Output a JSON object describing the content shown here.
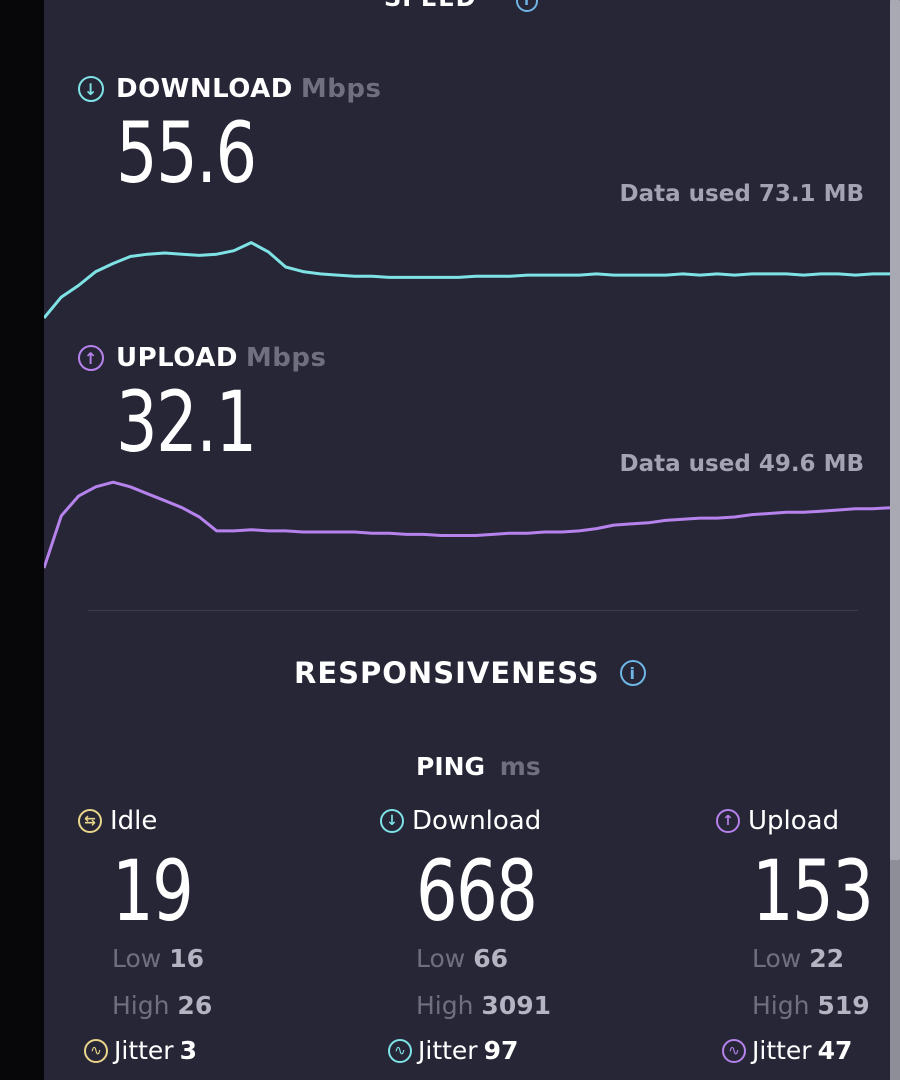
{
  "speed": {
    "section_title": "SPEED"
  },
  "download": {
    "label": "DOWNLOAD",
    "unit": "Mbps",
    "value": "55.6",
    "data_used": "Data used 73.1 MB",
    "color": "#7fe3e6",
    "trace": [
      0.0,
      0.18,
      0.28,
      0.4,
      0.47,
      0.53,
      0.55,
      0.56,
      0.55,
      0.54,
      0.55,
      0.58,
      0.65,
      0.57,
      0.44,
      0.4,
      0.38,
      0.37,
      0.36,
      0.36,
      0.35,
      0.35,
      0.35,
      0.35,
      0.35,
      0.36,
      0.36,
      0.36,
      0.37,
      0.37,
      0.37,
      0.37,
      0.38,
      0.37,
      0.37,
      0.37,
      0.37,
      0.38,
      0.37,
      0.38,
      0.37,
      0.38,
      0.38,
      0.38,
      0.37,
      0.38,
      0.38,
      0.37,
      0.38,
      0.38
    ]
  },
  "upload": {
    "label": "UPLOAD",
    "unit": "Mbps",
    "value": "32.1",
    "data_used": "Data used 49.6 MB",
    "color": "#b682ec",
    "trace": [
      0.0,
      0.45,
      0.62,
      0.7,
      0.74,
      0.7,
      0.64,
      0.58,
      0.52,
      0.44,
      0.32,
      0.32,
      0.33,
      0.32,
      0.32,
      0.31,
      0.31,
      0.31,
      0.31,
      0.3,
      0.3,
      0.29,
      0.29,
      0.28,
      0.28,
      0.28,
      0.29,
      0.3,
      0.3,
      0.31,
      0.31,
      0.32,
      0.34,
      0.37,
      0.38,
      0.39,
      0.41,
      0.42,
      0.43,
      0.43,
      0.44,
      0.46,
      0.47,
      0.48,
      0.48,
      0.49,
      0.5,
      0.51,
      0.51,
      0.52
    ]
  },
  "responsiveness": {
    "title": "RESPONSIVENESS"
  },
  "ping": {
    "label": "PING",
    "unit": "ms",
    "idle": {
      "label": "Idle",
      "value": "19",
      "low_label": "Low",
      "low": "16",
      "high_label": "High",
      "high": "26",
      "jitter_label": "Jitter",
      "jitter": "3",
      "color": "#e9d68a"
    },
    "download": {
      "label": "Download",
      "value": "668",
      "low_label": "Low",
      "low": "66",
      "high_label": "High",
      "high": "3091",
      "jitter_label": "Jitter",
      "jitter": "97",
      "color": "#7fe3e6"
    },
    "upload": {
      "label": "Upload",
      "value": "153",
      "low_label": "Low",
      "low": "22",
      "high_label": "High",
      "high": "519",
      "jitter_label": "Jitter",
      "jitter": "47",
      "color": "#b682ec"
    }
  }
}
